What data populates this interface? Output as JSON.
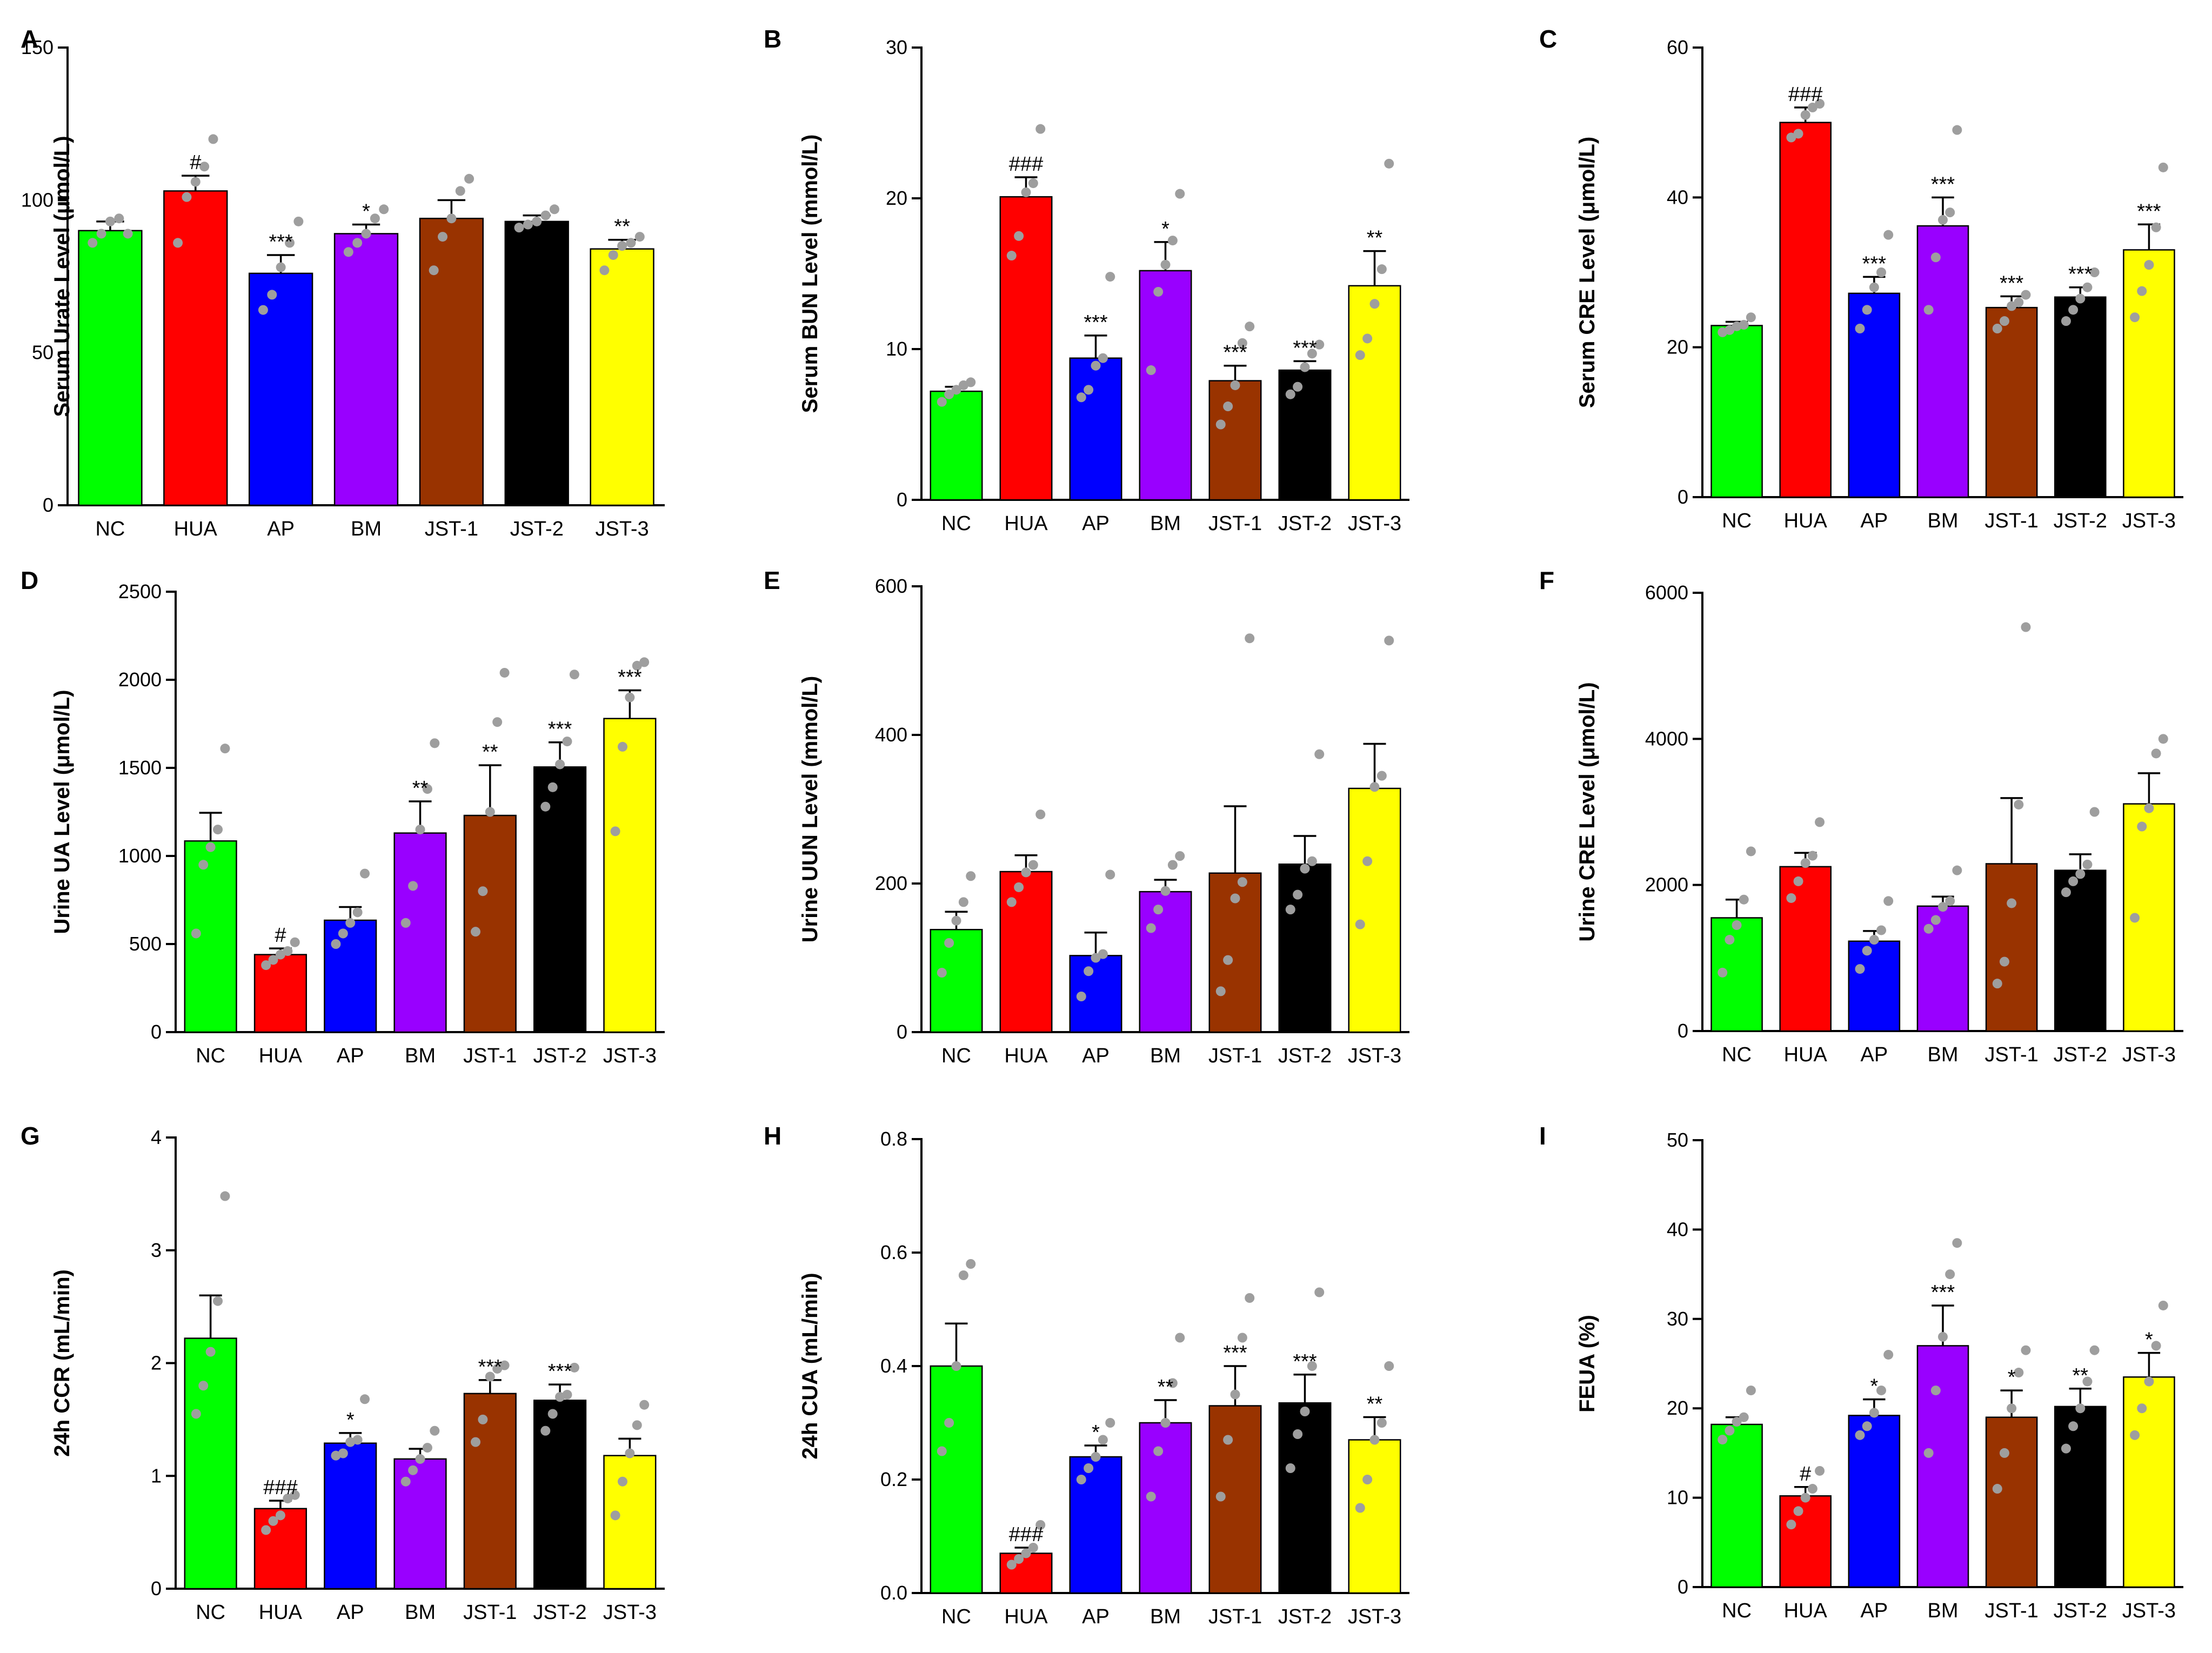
{
  "colors": {
    "NC": "#00ff00",
    "HUA": "#ff0000",
    "AP": "#0000ff",
    "BM": "#9900ff",
    "JST-1": "#993300",
    "JST-2": "#000000",
    "JST-3": "#ffff00",
    "points": "#9e9e9e"
  },
  "chart_data": [
    {
      "id": "A",
      "type": "bar",
      "panel_label": "A",
      "ylabel": "Serum Urate Level (μmol/L)",
      "categories": [
        "NC",
        "HUA",
        "AP",
        "BM",
        "JST-1",
        "JST-2",
        "JST-3"
      ],
      "ylim": [
        0,
        150
      ],
      "yticks": [
        0,
        50,
        100,
        150
      ],
      "yticklabels": [
        "0",
        "50",
        "100",
        "150"
      ],
      "values": [
        90,
        103,
        76,
        89,
        94,
        93,
        84
      ],
      "sem": [
        3,
        5,
        6,
        3,
        6,
        2,
        3
      ],
      "points": [
        [
          86,
          89,
          93,
          94,
          89
        ],
        [
          86,
          101,
          106,
          111,
          120
        ],
        [
          64,
          69,
          78,
          86,
          93
        ],
        [
          83,
          86,
          89,
          94,
          97
        ],
        [
          77,
          88,
          94,
          103,
          107
        ],
        [
          91,
          92,
          93,
          95,
          97
        ],
        [
          77,
          82,
          85,
          86,
          88
        ]
      ],
      "annotations": [
        "",
        "#",
        "***",
        "*",
        "",
        "",
        "**"
      ]
    },
    {
      "id": "B",
      "type": "bar",
      "panel_label": "B",
      "ylabel": "Serum BUN Level (mmol/L)",
      "categories": [
        "NC",
        "HUA",
        "AP",
        "BM",
        "JST-1",
        "JST-2",
        "JST-3"
      ],
      "ylim": [
        0,
        30
      ],
      "yticks": [
        0,
        10,
        20,
        30
      ],
      "yticklabels": [
        "0",
        "10",
        "20",
        "30"
      ],
      "values": [
        7.2,
        20.1,
        9.4,
        15.2,
        7.9,
        8.6,
        14.2
      ],
      "sem": [
        0.3,
        1.3,
        1.5,
        1.9,
        1.0,
        0.6,
        2.3
      ],
      "points": [
        [
          6.5,
          7.0,
          7.3,
          7.6,
          7.8
        ],
        [
          16.2,
          17.5,
          20.4,
          21.0,
          24.6
        ],
        [
          6.8,
          7.3,
          8.9,
          9.4,
          14.8
        ],
        [
          8.6,
          13.8,
          15.6,
          17.2,
          20.3
        ],
        [
          5.0,
          6.2,
          7.6,
          10.4,
          11.5
        ],
        [
          7.0,
          7.5,
          8.8,
          9.7,
          10.3
        ],
        [
          9.6,
          10.7,
          13.0,
          15.3,
          22.3
        ]
      ],
      "annotations": [
        "",
        "###",
        "***",
        "*",
        "***",
        "***",
        "**"
      ]
    },
    {
      "id": "C",
      "type": "bar",
      "panel_label": "C",
      "ylabel": "Serum CRE Level (μmol/L)",
      "categories": [
        "NC",
        "HUA",
        "AP",
        "BM",
        "JST-1",
        "JST-2",
        "JST-3"
      ],
      "ylim": [
        0,
        60
      ],
      "yticks": [
        0,
        20,
        40,
        60
      ],
      "yticklabels": [
        "0",
        "20",
        "40",
        "60"
      ],
      "values": [
        22.9,
        50,
        27.2,
        36.2,
        25.3,
        26.7,
        33
      ],
      "sem": [
        0.5,
        2,
        2.2,
        3.8,
        1.5,
        1.3,
        3.4
      ],
      "points": [
        [
          22.0,
          22.3,
          22.8,
          23.0,
          24.0
        ],
        [
          48.0,
          48.5,
          51.0,
          52.0,
          52.5
        ],
        [
          22.5,
          25.0,
          28.0,
          30.0,
          35.0
        ],
        [
          25.0,
          32.0,
          37.0,
          38.0,
          49.0
        ],
        [
          22.5,
          23.5,
          25.5,
          26.0,
          27.0
        ],
        [
          23.5,
          25.0,
          26.5,
          28.0,
          30.0
        ],
        [
          24.0,
          27.5,
          31.0,
          36.0,
          44.0
        ]
      ],
      "annotations": [
        "",
        "###",
        "***",
        "***",
        "***",
        "***",
        "***"
      ]
    },
    {
      "id": "D",
      "type": "bar",
      "panel_label": "D",
      "ylabel": "Urine UA Level (μmol/L)",
      "categories": [
        "NC",
        "HUA",
        "AP",
        "BM",
        "JST-1",
        "JST-2",
        "JST-3"
      ],
      "ylim": [
        0,
        2500
      ],
      "yticks": [
        0,
        500,
        1000,
        1500,
        2000,
        2500
      ],
      "yticklabels": [
        "0",
        "500",
        "1000",
        "1500",
        "2000",
        "2500"
      ],
      "values": [
        1085,
        440,
        635,
        1130,
        1230,
        1505,
        1780
      ],
      "sem": [
        160,
        35,
        75,
        180,
        285,
        140,
        160
      ],
      "points": [
        [
          560,
          950,
          1050,
          1150,
          1610
        ],
        [
          380,
          410,
          440,
          460,
          510
        ],
        [
          500,
          560,
          620,
          680,
          900
        ],
        [
          620,
          830,
          1150,
          1380,
          1640
        ],
        [
          570,
          800,
          1250,
          1760,
          2040
        ],
        [
          1280,
          1390,
          1520,
          1650,
          2030
        ],
        [
          1140,
          1620,
          1900,
          2080,
          2100
        ]
      ],
      "annotations": [
        "",
        "#",
        "",
        "**",
        "**",
        "***",
        "***"
      ]
    },
    {
      "id": "E",
      "type": "bar",
      "panel_label": "E",
      "ylabel": "Urine UUN Level (mmol/L)",
      "categories": [
        "NC",
        "HUA",
        "AP",
        "BM",
        "JST-1",
        "JST-2",
        "JST-3"
      ],
      "ylim": [
        0,
        600
      ],
      "yticks": [
        0,
        200,
        400,
        600
      ],
      "yticklabels": [
        "0",
        "200",
        "400",
        "600"
      ],
      "values": [
        138,
        216,
        103,
        189,
        214,
        226,
        328
      ],
      "sem": [
        24,
        22,
        31,
        16,
        90,
        38,
        60
      ],
      "points": [
        [
          80,
          120,
          150,
          175,
          210
        ],
        [
          175,
          195,
          215,
          225,
          293
        ],
        [
          48,
          82,
          100,
          105,
          212
        ],
        [
          140,
          165,
          190,
          225,
          237
        ],
        [
          55,
          97,
          180,
          202,
          530
        ],
        [
          165,
          185,
          220,
          230,
          374
        ],
        [
          145,
          230,
          330,
          345,
          527
        ]
      ],
      "annotations": [
        "",
        "",
        "",
        "",
        "",
        "",
        ""
      ]
    },
    {
      "id": "F",
      "type": "bar",
      "panel_label": "F",
      "ylabel": "Urine CRE Level (μmol/L)",
      "categories": [
        "NC",
        "HUA",
        "AP",
        "BM",
        "JST-1",
        "JST-2",
        "JST-3"
      ],
      "ylim": [
        0,
        6000
      ],
      "yticks": [
        0,
        2000,
        4000,
        6000
      ],
      "yticklabels": [
        "0",
        "2000",
        "4000",
        "6000"
      ],
      "values": [
        1550,
        2250,
        1230,
        1710,
        2290,
        2200,
        3110
      ],
      "sem": [
        250,
        190,
        140,
        130,
        900,
        220,
        420
      ],
      "points": [
        [
          800,
          1250,
          1450,
          1800,
          2460
        ],
        [
          1820,
          2050,
          2300,
          2400,
          2860
        ],
        [
          850,
          1100,
          1250,
          1380,
          1780
        ],
        [
          1400,
          1520,
          1700,
          1780,
          2200
        ],
        [
          650,
          950,
          1750,
          3100,
          5530
        ],
        [
          1900,
          2050,
          2150,
          2280,
          3000
        ],
        [
          1550,
          2800,
          3050,
          3800,
          4000
        ]
      ],
      "annotations": [
        "",
        "",
        "",
        "",
        "",
        "",
        ""
      ]
    },
    {
      "id": "G",
      "type": "bar",
      "panel_label": "G",
      "ylabel": "24h CCR (mL/min)",
      "categories": [
        "NC",
        "HUA",
        "AP",
        "BM",
        "JST-1",
        "JST-2",
        "JST-3"
      ],
      "ylim": [
        0,
        4
      ],
      "yticks": [
        0,
        1,
        2,
        3,
        4
      ],
      "yticklabels": [
        "0",
        "1",
        "2",
        "3",
        "4"
      ],
      "values": [
        2.22,
        0.71,
        1.29,
        1.15,
        1.73,
        1.67,
        1.18
      ],
      "sem": [
        0.38,
        0.07,
        0.09,
        0.09,
        0.12,
        0.14,
        0.15
      ],
      "points": [
        [
          1.55,
          1.8,
          2.1,
          2.55,
          3.48
        ],
        [
          0.52,
          0.6,
          0.65,
          0.8,
          0.83
        ],
        [
          1.18,
          1.2,
          1.3,
          1.32,
          1.68
        ],
        [
          0.95,
          1.05,
          1.15,
          1.25,
          1.4
        ],
        [
          1.3,
          1.5,
          1.88,
          1.95,
          1.98
        ],
        [
          1.4,
          1.55,
          1.7,
          1.72,
          1.96
        ],
        [
          0.65,
          0.95,
          1.2,
          1.45,
          1.63
        ]
      ],
      "annotations": [
        "",
        "###",
        "*",
        "",
        "***",
        "***",
        ""
      ]
    },
    {
      "id": "H",
      "type": "bar",
      "panel_label": "H",
      "ylabel": "24h CUA (mL/min)",
      "categories": [
        "NC",
        "HUA",
        "AP",
        "BM",
        "JST-1",
        "JST-2",
        "JST-3"
      ],
      "ylim": [
        0,
        0.8
      ],
      "yticks": [
        0,
        0.2,
        0.4,
        0.6,
        0.8
      ],
      "yticklabels": [
        "0.0",
        "0.2",
        "0.4",
        "0.6",
        "0.8"
      ],
      "values": [
        0.4,
        0.07,
        0.24,
        0.3,
        0.33,
        0.335,
        0.27
      ],
      "sem": [
        0.075,
        0.01,
        0.02,
        0.04,
        0.07,
        0.05,
        0.04
      ],
      "points": [
        [
          0.25,
          0.3,
          0.4,
          0.56,
          0.58
        ],
        [
          0.05,
          0.06,
          0.07,
          0.08,
          0.12
        ],
        [
          0.2,
          0.22,
          0.24,
          0.27,
          0.3
        ],
        [
          0.17,
          0.25,
          0.3,
          0.37,
          0.45
        ],
        [
          0.17,
          0.27,
          0.35,
          0.45,
          0.52
        ],
        [
          0.22,
          0.28,
          0.32,
          0.4,
          0.53
        ],
        [
          0.15,
          0.2,
          0.27,
          0.3,
          0.4
        ]
      ],
      "annotations": [
        "",
        "###",
        "*",
        "**",
        "***",
        "***",
        "**"
      ]
    },
    {
      "id": "I",
      "type": "bar",
      "panel_label": "I",
      "ylabel": "FEUA (%)",
      "categories": [
        "NC",
        "HUA",
        "AP",
        "BM",
        "JST-1",
        "JST-2",
        "JST-3"
      ],
      "ylim": [
        0,
        50
      ],
      "yticks": [
        0,
        10,
        20,
        30,
        40,
        50
      ],
      "yticklabels": [
        "0",
        "10",
        "20",
        "30",
        "40",
        "50"
      ],
      "values": [
        18.2,
        10.2,
        19.2,
        27,
        19,
        20.2,
        23.5
      ],
      "sem": [
        0.8,
        1,
        1.8,
        4.5,
        3,
        2,
        2.7
      ],
      "points": [
        [
          16.5,
          17.5,
          18.5,
          19,
          22
        ],
        [
          7,
          8.5,
          10,
          11,
          13
        ],
        [
          17,
          18,
          19.5,
          22,
          26
        ],
        [
          15,
          22,
          28,
          35,
          38.5
        ],
        [
          11,
          15,
          20,
          24,
          26.5
        ],
        [
          15.5,
          18,
          20,
          23,
          26.5
        ],
        [
          17,
          20,
          23,
          27,
          31.5
        ]
      ],
      "annotations": [
        "",
        "#",
        "*",
        "***",
        "*",
        "**",
        "*"
      ]
    }
  ]
}
